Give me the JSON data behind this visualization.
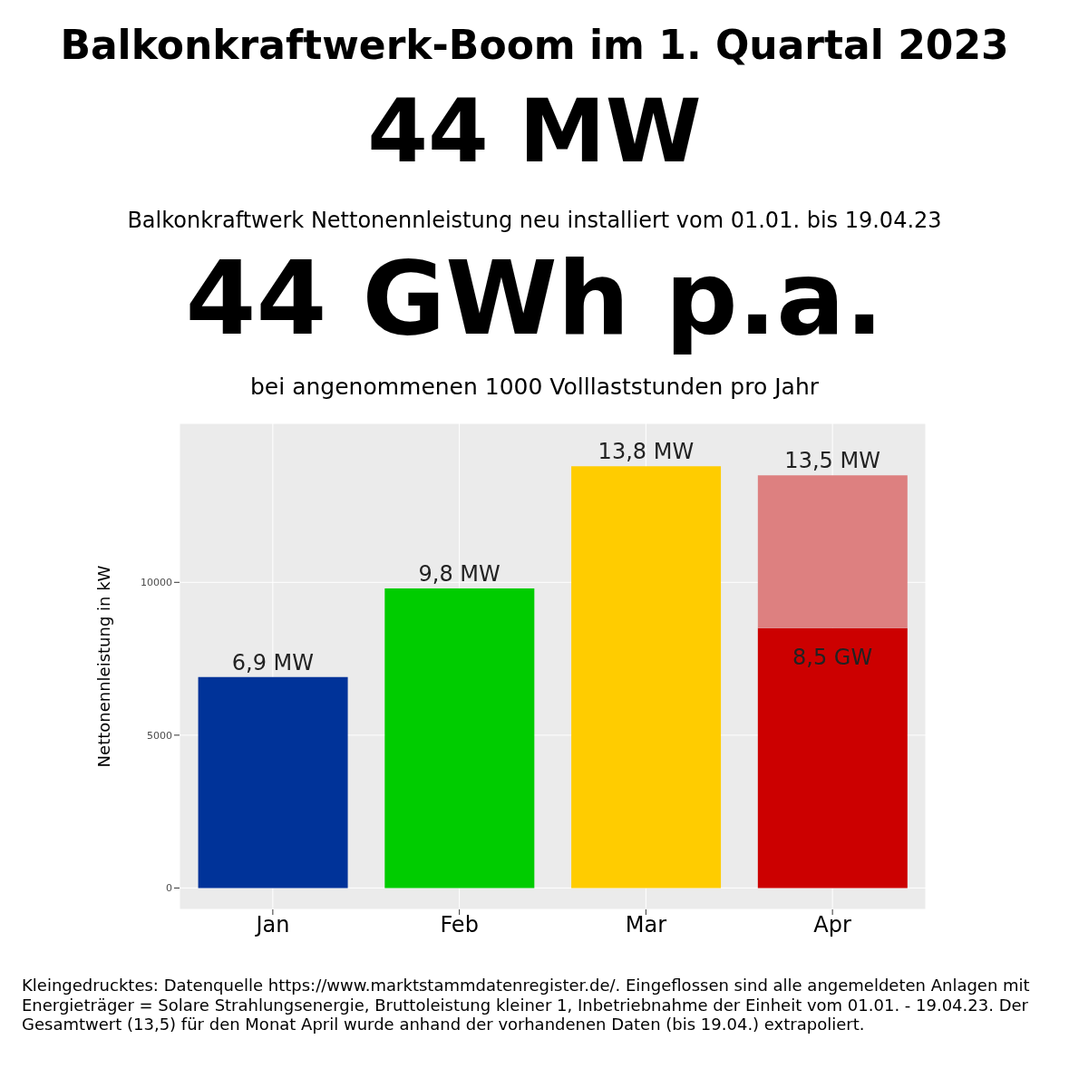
{
  "chart_data": {
    "type": "bar",
    "title": "Balkonkraftwerk-Boom im 1. Quartal 2023",
    "annotations": [
      "44 MW",
      "Balkonkraftwerk Nettonennleistung neu installiert vom 01.01. bis 19.04.23",
      "44 GWh p.a.",
      "bei angenommenen 1000 Volllaststunden pro Jahr",
      {
        "text": "6,9 MW",
        "x": "Jan",
        "y": 6900
      },
      {
        "text": "9,8 MW",
        "x": "Feb",
        "y": 9800
      },
      {
        "text": "13,8 MW",
        "x": "Mar",
        "y": 13800
      },
      {
        "text": "8,5 GW",
        "x": "Apr",
        "y": 8500
      },
      {
        "text": "13,5 MW",
        "x": "Apr",
        "y": 13500
      },
      "Kleingedrucktes: Datenquelle https://www.marktstammdatenregister.de/. Eingeflossen sind alle angemeldeten Anlagen mit Energieträger = Solare Strahlungsenergie, Bruttoleistung kleiner 1, Inbetriebnahme der Einheit vom 01.01. - 19.04.23. Der Gesamtwert (13,5) für den Monat April wurde anhand der vorhandenen Daten (bis 19.04.) extrapoliert."
    ],
    "ylabel": "Nettonennleistung in kW",
    "categories": [
      "Jan",
      "Feb",
      "Mar",
      "Apr"
    ],
    "series": [
      {
        "colors": [
          "#003399",
          "#00cc00",
          "#ffcc00",
          "#cc0000"
        ],
        "values": [
          6900,
          9800,
          13800,
          8500
        ]
      },
      {
        "color": "#dd8080",
        "values": [
          null,
          null,
          null,
          5000
        ]
      }
    ],
    "stacked": true,
    "ylim": [
      -700,
      15200
    ],
    "yticks": [
      0,
      5000,
      10000
    ],
    "grid": true
  }
}
